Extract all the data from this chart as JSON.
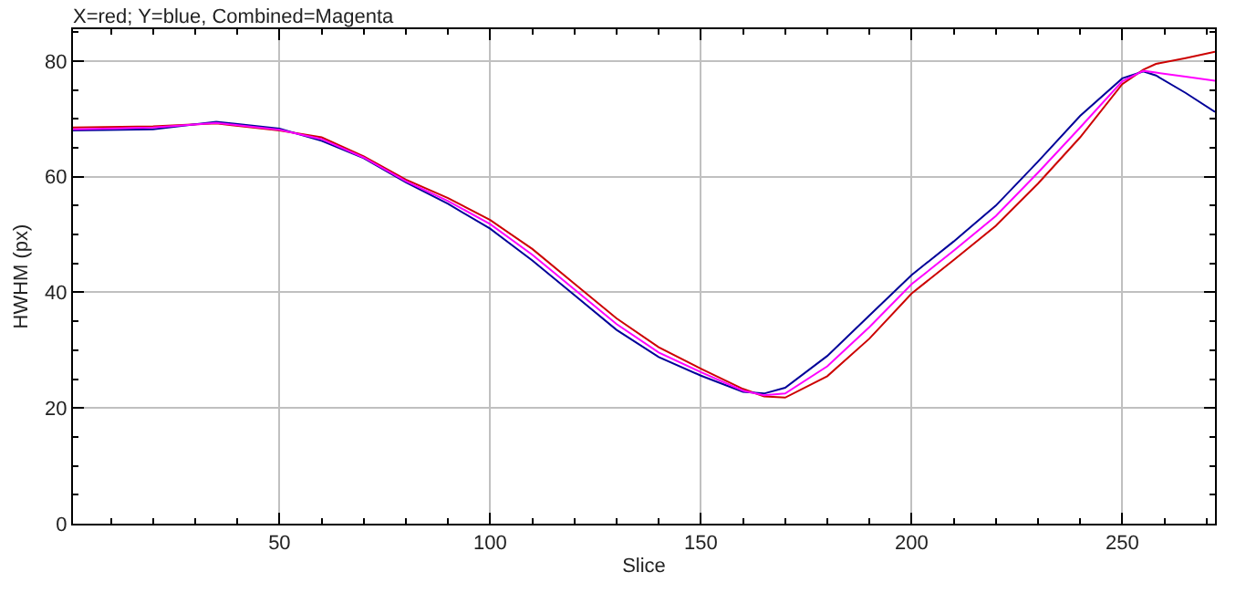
{
  "chart_data": {
    "type": "line",
    "title": "X=red; Y=blue, Combined=Magenta",
    "xlabel": "Slice",
    "ylabel": "HWHM (px)",
    "x": [
      1,
      20,
      35,
      50,
      60,
      70,
      80,
      90,
      100,
      110,
      120,
      130,
      140,
      150,
      160,
      165,
      170,
      180,
      190,
      200,
      210,
      220,
      230,
      240,
      250,
      255,
      258,
      265,
      272
    ],
    "series": [
      {
        "color": "#cc0000",
        "values": [
          68.5,
          68.7,
          69.2,
          68.0,
          66.8,
          63.5,
          59.5,
          56.3,
          52.5,
          47.5,
          41.5,
          35.5,
          30.5,
          26.8,
          23.3,
          22.0,
          21.8,
          25.5,
          32.0,
          39.8,
          45.6,
          51.5,
          58.8,
          66.8,
          76.0,
          78.5,
          79.5,
          80.5,
          81.6
        ]
      },
      {
        "color": "#000099",
        "values": [
          68.0,
          68.2,
          69.5,
          68.3,
          66.2,
          63.2,
          59.0,
          55.3,
          51.0,
          45.5,
          39.5,
          33.5,
          28.8,
          25.6,
          22.8,
          22.5,
          23.5,
          29.0,
          36.0,
          43.0,
          48.8,
          55.0,
          62.6,
          70.5,
          77.0,
          78.2,
          77.5,
          74.5,
          71.2
        ]
      },
      {
        "color": "#ff00ff",
        "values": [
          68.2,
          68.5,
          69.3,
          68.1,
          66.5,
          63.3,
          59.2,
          55.8,
          51.8,
          46.5,
          40.5,
          34.5,
          29.6,
          26.2,
          23.0,
          22.2,
          22.5,
          27.2,
          34.0,
          41.4,
          47.2,
          53.2,
          60.7,
          68.5,
          76.5,
          78.3,
          78.0,
          77.3,
          76.6
        ]
      }
    ],
    "xlim": [
      1,
      272
    ],
    "xticks": [
      50,
      100,
      150,
      200,
      250
    ],
    "ylim": [
      0,
      85.5
    ],
    "yticks": [
      0,
      20,
      40,
      60,
      80
    ],
    "grid": true,
    "marker": "none",
    "line_style": "solid"
  }
}
